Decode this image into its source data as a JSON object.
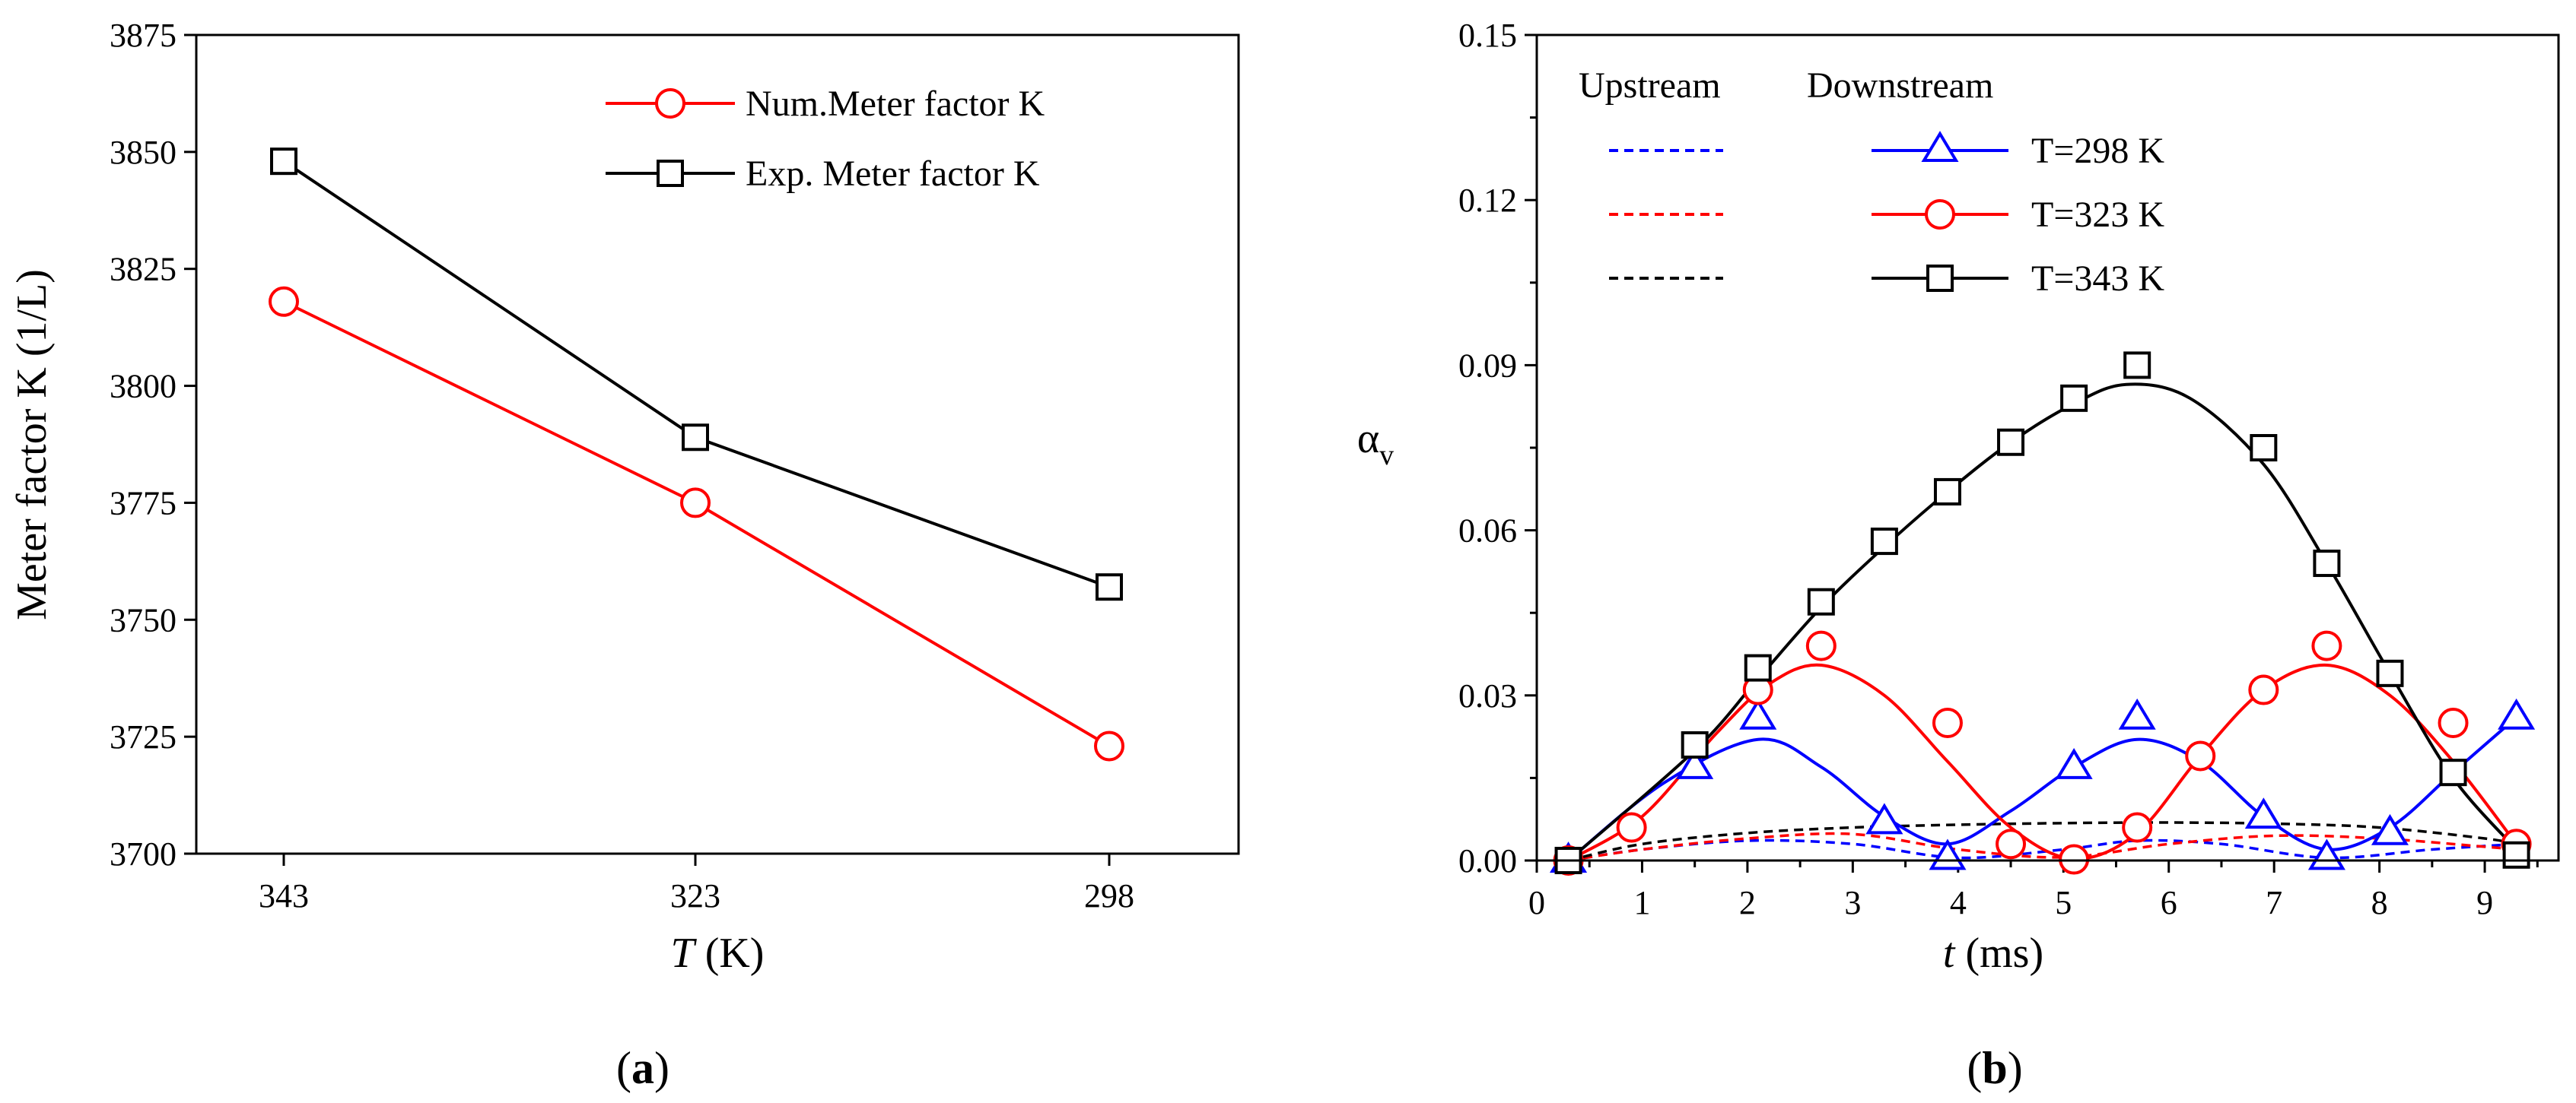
{
  "chart_data": [
    {
      "type": "line",
      "panel_caption": [
        "(",
        "a",
        ")"
      ],
      "xlabel": [
        "T",
        " (K)"
      ],
      "ylabel": "Meter factor K (1/L)",
      "categories": [
        "343",
        "323",
        "298"
      ],
      "ylim": [
        3700,
        3875
      ],
      "yticks": [
        3700,
        3725,
        3750,
        3775,
        3800,
        3825,
        3850,
        3875
      ],
      "series": [
        {
          "name": "Num.Meter factor K",
          "color": "#ff0000",
          "marker": "circle",
          "values": [
            3818,
            3775,
            3723
          ]
        },
        {
          "name": "Exp. Meter factor K",
          "color": "#000000",
          "marker": "square",
          "values": [
            3848,
            3789,
            3757
          ]
        }
      ]
    },
    {
      "type": "line",
      "panel_caption": [
        "(",
        "b",
        ")"
      ],
      "xlabel": [
        "t",
        " (ms)"
      ],
      "ylabel": [
        "α",
        "v"
      ],
      "xlim": [
        0,
        9.7
      ],
      "ylim": [
        0,
        0.15
      ],
      "xticks": [
        0,
        1,
        2,
        3,
        4,
        5,
        6,
        7,
        8,
        9
      ],
      "yticks": [
        0,
        0.03,
        0.06,
        0.09,
        0.12,
        0.15
      ],
      "ytick_labels": [
        "0.00",
        "0.03",
        "0.06",
        "0.09",
        "0.12",
        "0.15"
      ],
      "legend_headers": {
        "upstream": "Upstream",
        "downstream": "Downstream"
      },
      "series": [
        {
          "name": "T=298 K",
          "color": "#0000ff",
          "marker": "triangle",
          "points": [
            [
              0.3,
              0
            ],
            [
              1.5,
              0.017
            ],
            [
              2.1,
              0.026
            ],
            [
              3.3,
              0.007
            ],
            [
              3.9,
              0.0005
            ],
            [
              5.1,
              0.017
            ],
            [
              5.7,
              0.026
            ],
            [
              6.9,
              0.008
            ],
            [
              7.5,
              0.0005
            ],
            [
              8.1,
              0.005
            ],
            [
              9.3,
              0.026
            ]
          ],
          "curve": [
            [
              0.3,
              0
            ],
            [
              1.2,
              0.014
            ],
            [
              2.1,
              0.022
            ],
            [
              2.7,
              0.017
            ],
            [
              3.3,
              0.008
            ],
            [
              3.9,
              0.003
            ],
            [
              4.5,
              0.009
            ],
            [
              5.1,
              0.017
            ],
            [
              5.7,
              0.022
            ],
            [
              6.3,
              0.018
            ],
            [
              6.9,
              0.008
            ],
            [
              7.5,
              0.002
            ],
            [
              8.1,
              0.006
            ],
            [
              8.7,
              0.016
            ],
            [
              9.3,
              0.026
            ]
          ],
          "upstream_curve": [
            [
              0.3,
              0
            ],
            [
              1,
              0.002
            ],
            [
              2,
              0.0036
            ],
            [
              3,
              0.003
            ],
            [
              4,
              0.0005
            ],
            [
              5,
              0.002
            ],
            [
              5.7,
              0.0036
            ],
            [
              6.5,
              0.003
            ],
            [
              7.5,
              0.0005
            ],
            [
              8.5,
              0.002
            ],
            [
              9.3,
              0.003
            ]
          ]
        },
        {
          "name": "T=323 K",
          "color": "#ff0000",
          "marker": "circle",
          "points": [
            [
              0.3,
              0
            ],
            [
              0.9,
              0.006
            ],
            [
              2.1,
              0.031
            ],
            [
              2.7,
              0.039
            ],
            [
              3.9,
              0.025
            ],
            [
              4.5,
              0.003
            ],
            [
              5.1,
              0.0002
            ],
            [
              5.7,
              0.006
            ],
            [
              6.3,
              0.019
            ],
            [
              6.9,
              0.031
            ],
            [
              7.5,
              0.039
            ],
            [
              8.7,
              0.025
            ],
            [
              9.3,
              0.003
            ]
          ],
          "curve": [
            [
              0.3,
              0
            ],
            [
              1,
              0.008
            ],
            [
              1.7,
              0.023
            ],
            [
              2.2,
              0.032
            ],
            [
              2.7,
              0.0355
            ],
            [
              3.3,
              0.03
            ],
            [
              3.9,
              0.018
            ],
            [
              4.5,
              0.006
            ],
            [
              5.1,
              0.0003
            ],
            [
              5.7,
              0.005
            ],
            [
              6.3,
              0.019
            ],
            [
              6.9,
              0.031
            ],
            [
              7.5,
              0.0355
            ],
            [
              8.1,
              0.03
            ],
            [
              8.7,
              0.018
            ],
            [
              9.3,
              0.003
            ]
          ],
          "upstream_curve": [
            [
              0.3,
              0
            ],
            [
              1,
              0.002
            ],
            [
              2,
              0.004
            ],
            [
              3,
              0.0048
            ],
            [
              4,
              0.002
            ],
            [
              5,
              0.0006
            ],
            [
              6,
              0.003
            ],
            [
              7,
              0.0045
            ],
            [
              8,
              0.004
            ],
            [
              9,
              0.0025
            ],
            [
              9.3,
              0.002
            ]
          ]
        },
        {
          "name": "T=343 K",
          "color": "#000000",
          "marker": "square",
          "points": [
            [
              0.3,
              0
            ],
            [
              1.5,
              0.021
            ],
            [
              2.1,
              0.035
            ],
            [
              2.7,
              0.047
            ],
            [
              3.3,
              0.058
            ],
            [
              3.9,
              0.067
            ],
            [
              4.5,
              0.076
            ],
            [
              5.1,
              0.084
            ],
            [
              5.7,
              0.09
            ],
            [
              6.9,
              0.075
            ],
            [
              7.5,
              0.054
            ],
            [
              8.1,
              0.034
            ],
            [
              8.7,
              0.016
            ],
            [
              9.3,
              0.001
            ]
          ],
          "curve": [
            [
              0.3,
              0
            ],
            [
              1.5,
              0.02
            ],
            [
              2.1,
              0.033
            ],
            [
              2.7,
              0.046
            ],
            [
              3.3,
              0.057
            ],
            [
              3.9,
              0.067
            ],
            [
              4.5,
              0.076
            ],
            [
              5.1,
              0.083
            ],
            [
              5.6,
              0.0865
            ],
            [
              6.2,
              0.084
            ],
            [
              6.9,
              0.072
            ],
            [
              7.5,
              0.054
            ],
            [
              8.1,
              0.034
            ],
            [
              8.7,
              0.015
            ],
            [
              9.3,
              0.002
            ]
          ],
          "upstream_curve": [
            [
              0.3,
              0
            ],
            [
              1,
              0.003
            ],
            [
              2,
              0.005
            ],
            [
              3,
              0.006
            ],
            [
              4,
              0.0065
            ],
            [
              5,
              0.0068
            ],
            [
              6,
              0.0069
            ],
            [
              7,
              0.0067
            ],
            [
              8,
              0.006
            ],
            [
              9,
              0.004
            ],
            [
              9.3,
              0.003
            ]
          ]
        }
      ]
    }
  ]
}
